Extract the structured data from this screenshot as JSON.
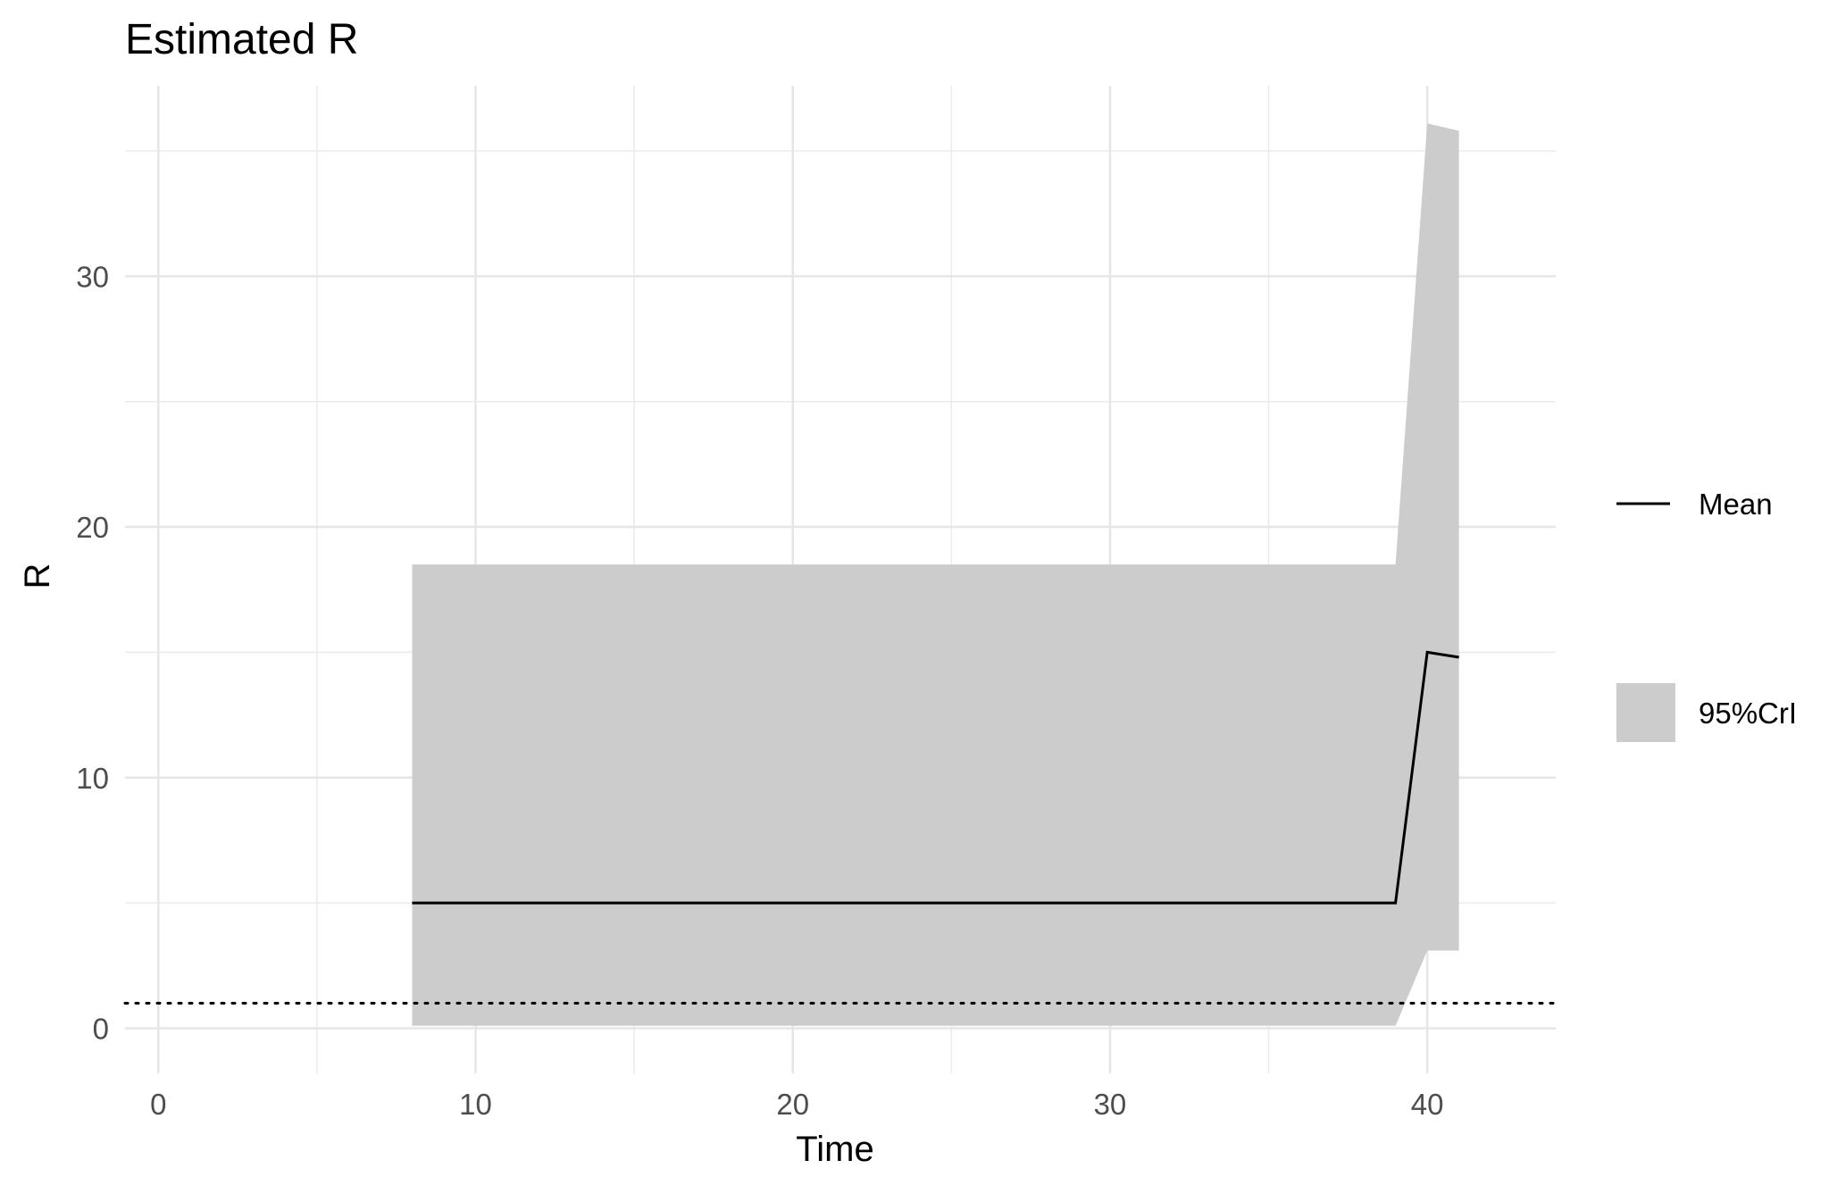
{
  "chart_data": {
    "type": "area",
    "title": "Estimated R",
    "xlabel": "Time",
    "ylabel": "R",
    "xlim": [
      -1.05,
      44.05
    ],
    "ylim": [
      -1.8,
      37.6
    ],
    "x_ticks": [
      0,
      10,
      20,
      30,
      40
    ],
    "y_ticks": [
      0,
      10,
      20,
      30
    ],
    "grid": true,
    "legend_position": "right",
    "series": [
      {
        "name": "Mean",
        "kind": "line",
        "color": "#000000",
        "x": [
          8,
          39,
          40,
          41
        ],
        "y": [
          5.0,
          5.0,
          15.0,
          14.8
        ]
      },
      {
        "name": "95%CrI",
        "kind": "ribbon",
        "color": "#cccccc",
        "x": [
          8,
          39,
          40,
          41
        ],
        "lower": [
          0.1,
          0.1,
          3.1,
          3.1
        ],
        "upper": [
          18.5,
          18.5,
          36.1,
          35.8
        ]
      }
    ],
    "reference_line": {
      "y": 1,
      "style": "dotted",
      "color": "#000000"
    },
    "legend": [
      {
        "label": "Mean",
        "key": "line"
      },
      {
        "label": "95%CrI",
        "key": "fill"
      }
    ]
  }
}
